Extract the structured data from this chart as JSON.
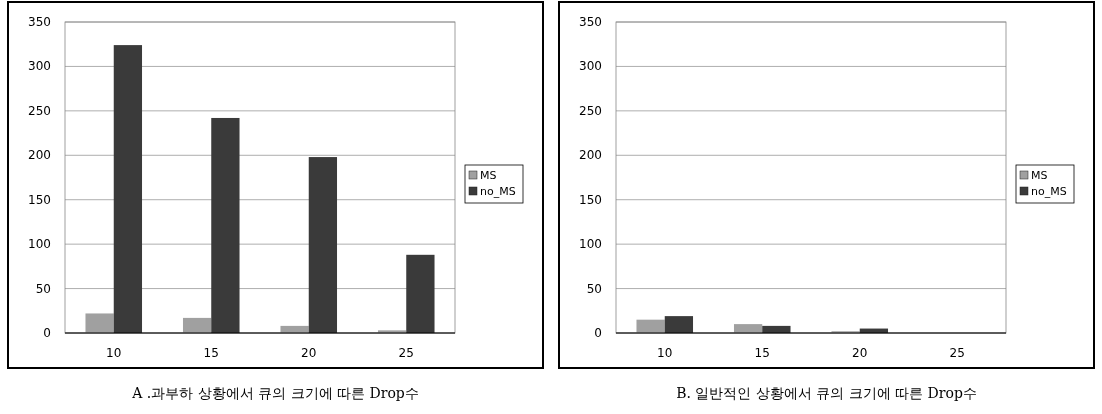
{
  "chart_data": [
    {
      "type": "bar",
      "categories": [
        "10",
        "15",
        "20",
        "25"
      ],
      "series": [
        {
          "name": "MS",
          "color": "#a0a0a0",
          "values": [
            22,
            17,
            8,
            3
          ]
        },
        {
          "name": "no_MS",
          "color": "#3a3a3a",
          "values": [
            324,
            242,
            198,
            88
          ]
        }
      ],
      "ylim": [
        0,
        350
      ],
      "yticks": [
        0,
        50,
        100,
        150,
        200,
        250,
        300,
        350
      ],
      "grid": "y",
      "legend": "right",
      "annotations": [
        "A .과부하 상황에서 큐의 크기에 따른 Drop수"
      ]
    },
    {
      "type": "bar",
      "categories": [
        "10",
        "15",
        "20",
        "25"
      ],
      "series": [
        {
          "name": "MS",
          "color": "#a0a0a0",
          "values": [
            15,
            10,
            2,
            0
          ]
        },
        {
          "name": "no_MS",
          "color": "#3a3a3a",
          "values": [
            19,
            8,
            5,
            0
          ]
        }
      ],
      "ylim": [
        0,
        350
      ],
      "yticks": [
        0,
        50,
        100,
        150,
        200,
        250,
        300,
        350
      ],
      "grid": "y",
      "legend": "right",
      "annotations": [
        "B. 일반적인 상황에서 큐의 크기에 따른 Drop수"
      ]
    }
  ]
}
